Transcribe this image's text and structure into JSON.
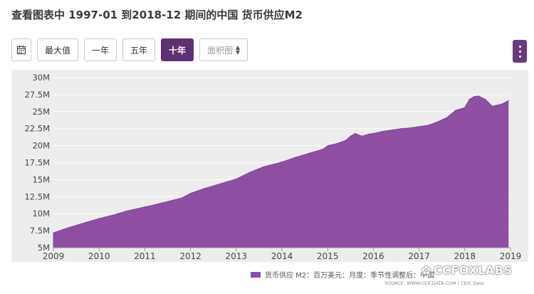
{
  "title": "查看图表中 1997-01 到2018-12 期间的中国 货币供应M2",
  "toolbar": {
    "calendar_icon": "calendar-icon",
    "buttons": [
      "最大值",
      "一年",
      "五年",
      "十年"
    ],
    "active": "十年",
    "chart_type": "面积图"
  },
  "legend": "货币供应 M2：百万美元：月度：季节性调整后：中国",
  "source": "SOURCE: WWW.CEICDATA.COM | CEIC Data",
  "watermark": "CCFOXLABS",
  "colors": {
    "area": "#8e4fa3",
    "active": "#5e2f73",
    "panel": "#ededee"
  },
  "chart_data": {
    "type": "area",
    "title": "",
    "xlabel": "",
    "ylabel": "",
    "x_ticks": [
      "2009",
      "2010",
      "2011",
      "2012",
      "2013",
      "2014",
      "2015",
      "2016",
      "2017",
      "2018",
      "2019"
    ],
    "y_ticks": [
      "5M",
      "7.5M",
      "10M",
      "12.5M",
      "15M",
      "17.5M",
      "20M",
      "22.5M",
      "25M",
      "27.5M",
      "30M"
    ],
    "xlim": [
      2009,
      2019
    ],
    "ylim": [
      5,
      30
    ],
    "grid": true,
    "legend_position": "bottom-right",
    "series": [
      {
        "name": "货币供应 M2：百万美元：月度：季节性调整后：中国",
        "x": [
          2009.0,
          2009.3,
          2009.6,
          2010.0,
          2010.3,
          2010.6,
          2011.0,
          2011.2,
          2011.5,
          2011.8,
          2012.0,
          2012.3,
          2012.6,
          2013.0,
          2013.3,
          2013.6,
          2014.0,
          2014.3,
          2014.6,
          2014.9,
          2015.0,
          2015.2,
          2015.4,
          2015.5,
          2015.6,
          2015.75,
          2015.9,
          2016.0,
          2016.2,
          2016.4,
          2016.6,
          2016.8,
          2017.0,
          2017.2,
          2017.4,
          2017.6,
          2017.8,
          2018.0,
          2018.1,
          2018.2,
          2018.3,
          2018.45,
          2018.6,
          2018.8,
          2018.95
        ],
        "values": [
          7.2,
          7.9,
          8.5,
          9.3,
          9.8,
          10.4,
          11.0,
          11.3,
          11.8,
          12.3,
          13.0,
          13.7,
          14.3,
          15.1,
          16.1,
          16.9,
          17.6,
          18.3,
          18.9,
          19.5,
          20.0,
          20.3,
          20.8,
          21.4,
          21.8,
          21.4,
          21.7,
          21.8,
          22.1,
          22.3,
          22.5,
          22.6,
          22.8,
          23.0,
          23.5,
          24.1,
          25.2,
          25.6,
          26.8,
          27.2,
          27.3,
          26.8,
          25.8,
          26.1,
          26.6
        ]
      }
    ]
  }
}
